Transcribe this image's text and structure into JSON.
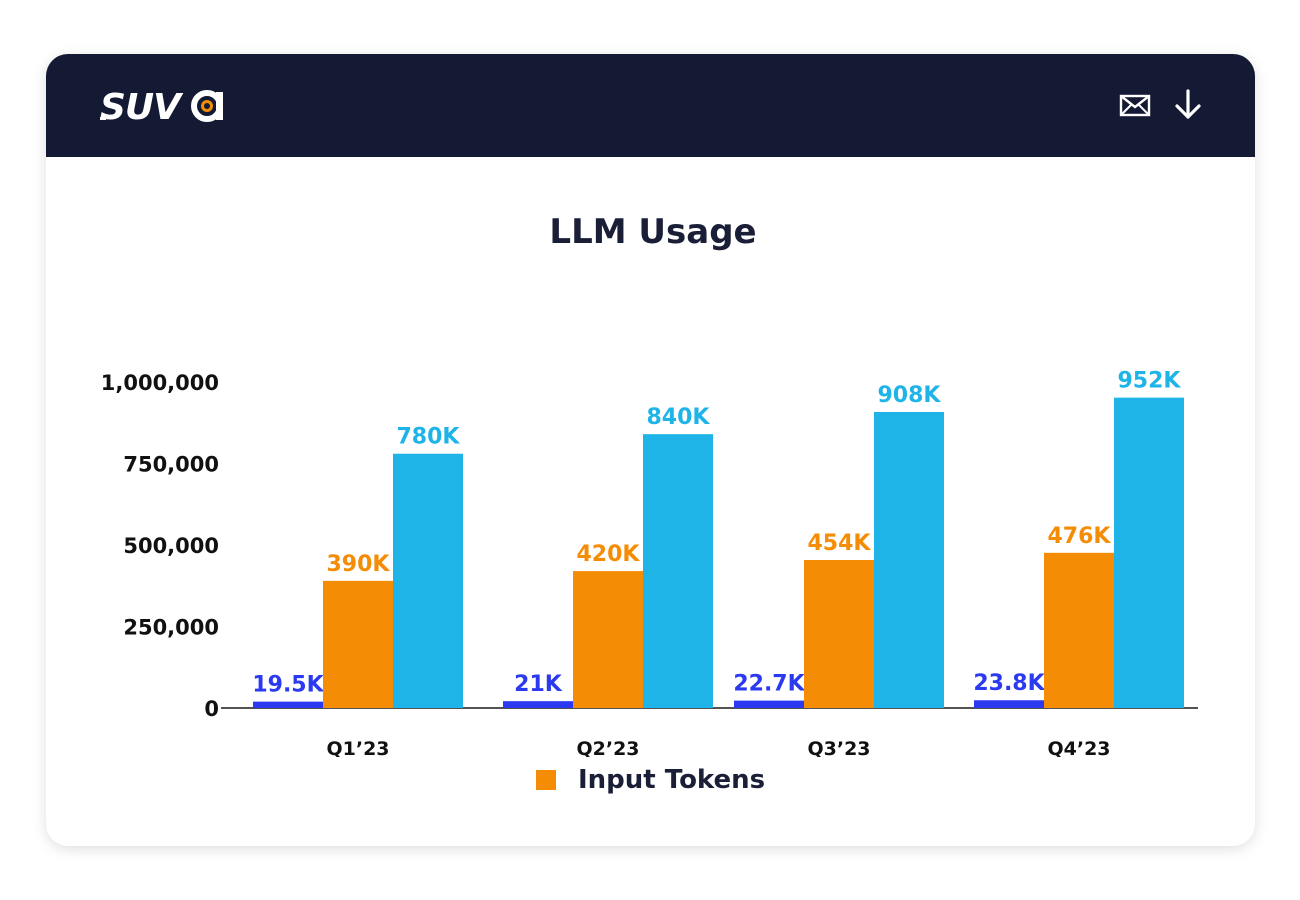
{
  "header": {
    "logo_text": "SUVA",
    "icons": [
      "mail-icon",
      "download-icon"
    ],
    "background": "#141a33"
  },
  "chart_data": {
    "type": "bar",
    "title": "LLM Usage",
    "categories": [
      "Q1’23",
      "Q2’23",
      "Q3’23",
      "Q4’23"
    ],
    "series": [
      {
        "color": "#2b3af0",
        "values": [
          19500,
          21000,
          22700,
          23800
        ],
        "labels": [
          "19.5K",
          "21K",
          "22.7K",
          "23.8K"
        ]
      },
      {
        "name": "Input Tokens",
        "color": "#f48c06",
        "values": [
          390000,
          420000,
          454000,
          476000
        ],
        "labels": [
          "390K",
          "420K",
          "454K",
          "476K"
        ]
      },
      {
        "color": "#1fb4e8",
        "values": [
          780000,
          840000,
          908000,
          952000
        ],
        "labels": [
          "780K",
          "840K",
          "908K",
          "952K"
        ]
      }
    ],
    "yticks": [
      "0",
      "250,000",
      "500,000",
      "750,000",
      "1,000,000"
    ],
    "ytick_values": [
      0,
      250000,
      500000,
      750000,
      1000000
    ],
    "ylim": [
      0,
      1000000
    ],
    "xlabel": "",
    "ylabel": "",
    "grid": false,
    "legend": {
      "position": "bottom-center",
      "entries": [
        {
          "label": "Input Tokens",
          "color": "#f48c06"
        }
      ]
    }
  }
}
